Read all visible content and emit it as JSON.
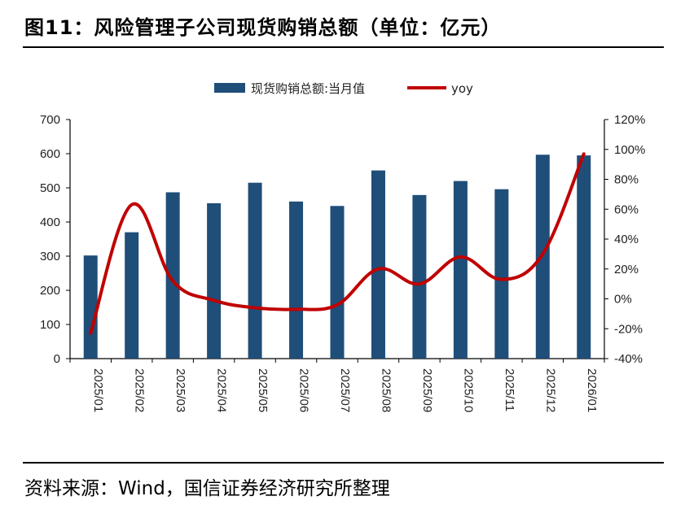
{
  "header": {
    "title": "图11：风险管理子公司现货购销总额（单位：亿元）"
  },
  "footer": {
    "source": "资料来源：Wind，国信证券经济研究所整理"
  },
  "colors": {
    "bar": "#1f4e79",
    "line": "#c00000",
    "axis": "#000000"
  },
  "chart_data": {
    "type": "bar",
    "categories": [
      "2025/01",
      "2025/02",
      "2025/03",
      "2025/04",
      "2025/05",
      "2025/06",
      "2025/07",
      "2025/08",
      "2025/09",
      "2025/10",
      "2025/11",
      "2025/12",
      "2026/01"
    ],
    "series": [
      {
        "name": "现货购销总额:当月值",
        "type": "bar",
        "axis": "left",
        "values": [
          302,
          370,
          487,
          455,
          515,
          460,
          447,
          551,
          479,
          520,
          496,
          597,
          595
        ]
      },
      {
        "name": "yoy",
        "type": "line",
        "axis": "right",
        "values": [
          -23,
          63,
          12,
          -1,
          -6,
          -7,
          -4,
          20,
          10,
          28,
          13,
          30,
          97
        ]
      }
    ],
    "left_axis": {
      "ylim": [
        0,
        700
      ],
      "ticks": [
        "0",
        "100",
        "200",
        "300",
        "400",
        "500",
        "600",
        "700"
      ]
    },
    "right_axis": {
      "ylim": [
        -40,
        120
      ],
      "ticks": [
        "-40%",
        "-20%",
        "0%",
        "20%",
        "40%",
        "60%",
        "80%",
        "100%",
        "120%"
      ]
    },
    "legend_position": "top-center",
    "grid": false
  }
}
